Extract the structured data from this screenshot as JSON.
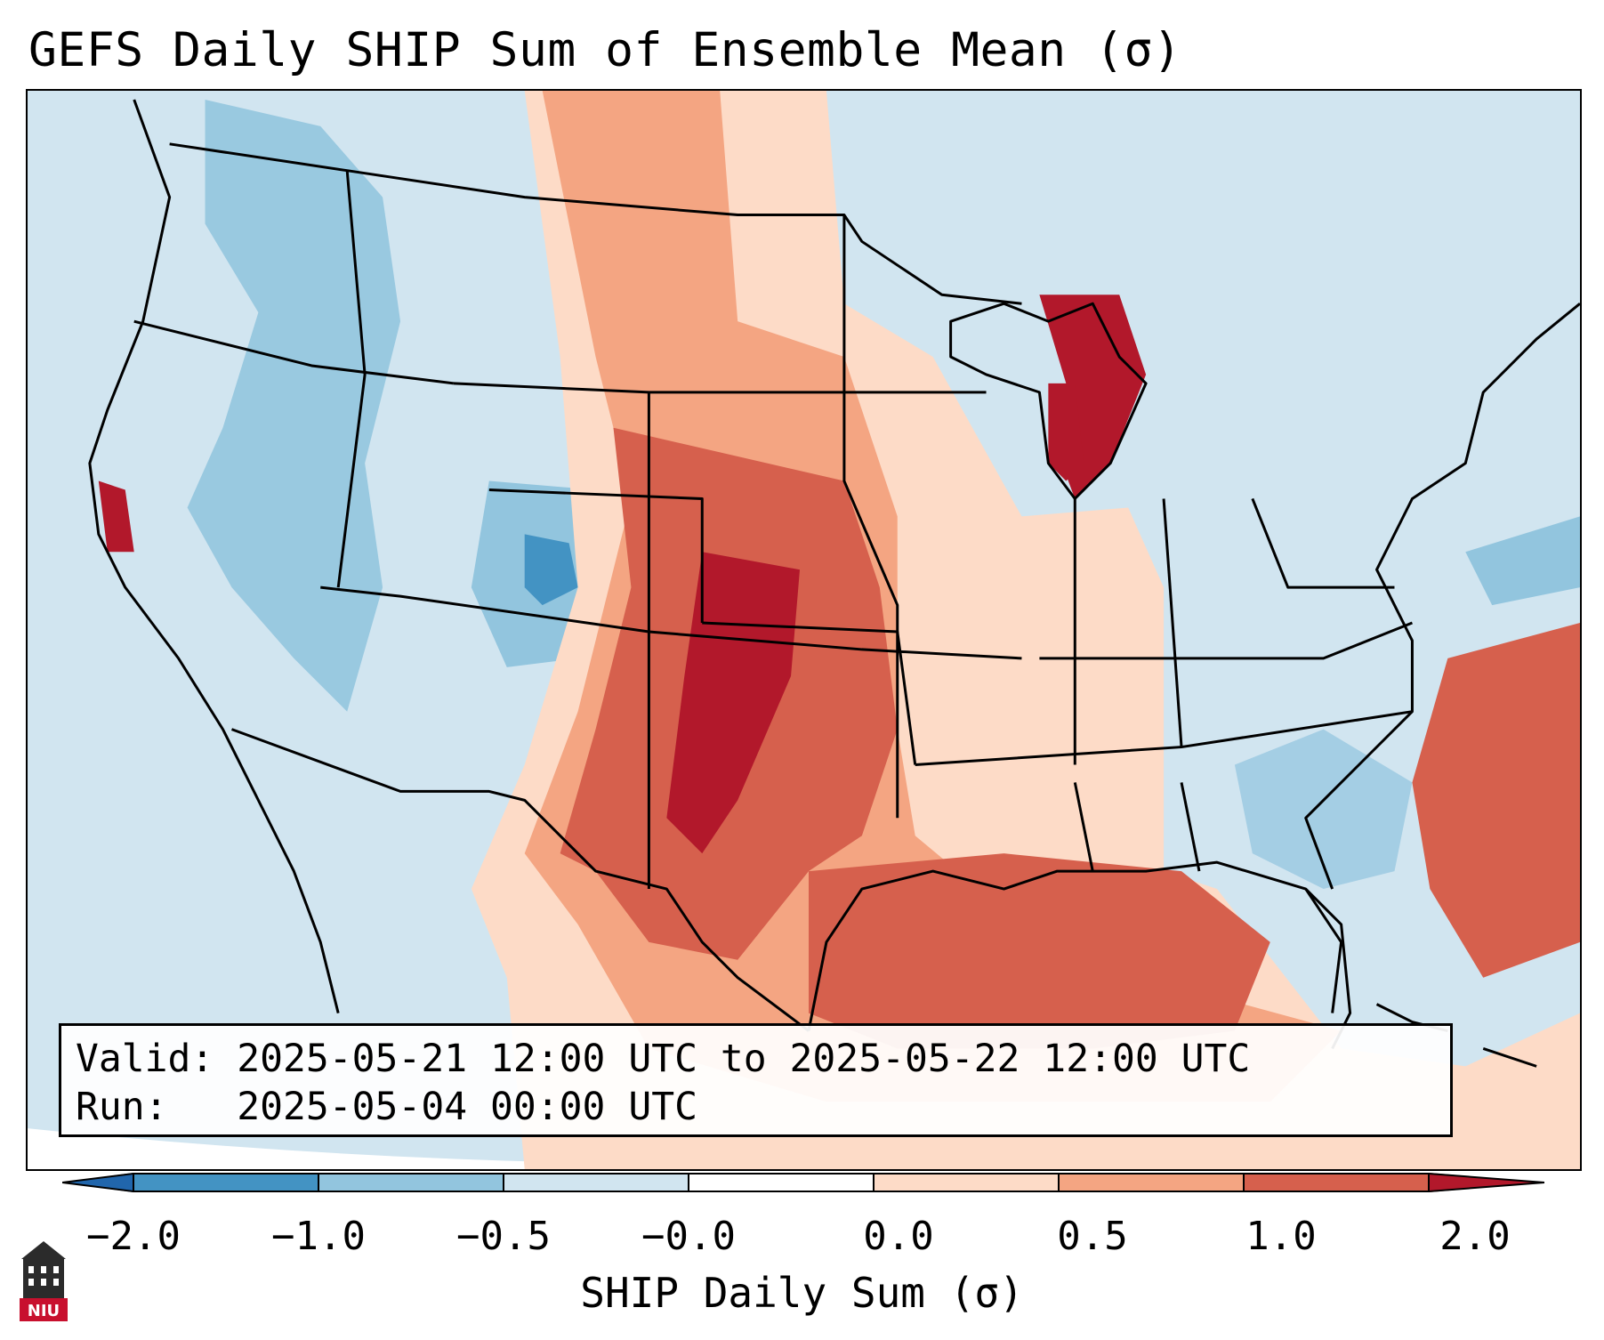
{
  "title": "GEFS Daily SHIP Sum of Ensemble Mean (σ)",
  "info": {
    "valid_line": "Valid: 2025-05-21 12:00 UTC to 2025-05-22 12:00 UTC",
    "run_line": "Run:   2025-05-04 00:00 UTC"
  },
  "colorbar": {
    "label": "SHIP Daily Sum (σ)",
    "ticks": [
      "−2.0",
      "−1.0",
      "−0.5",
      "−0.0",
      "0.0",
      "0.5",
      "1.0",
      "2.0"
    ],
    "colors": {
      "below_min": "#2166ac",
      "b_m2_m1": "#4393c3",
      "b_m1_m05": "#92c5de",
      "b_m05_0": "#d1e5f0",
      "b_0": "#ffffff",
      "b_0_05": "#fddbc7",
      "b_05_1": "#f4a582",
      "b_1_2": "#d6604d",
      "above_max": "#b2182b"
    }
  },
  "map": {
    "background_color": "#d1e5f0",
    "region": "Continental United States and Gulf of Mexico",
    "high_values_centered": "Southern Plains (Oklahoma, Kansas, Texas Panhandle) and Michigan",
    "low_values_centered": "Western US, Colorado, Northeast"
  },
  "logo": {
    "text": "NIU",
    "icon": "niu-building-logo-icon"
  }
}
